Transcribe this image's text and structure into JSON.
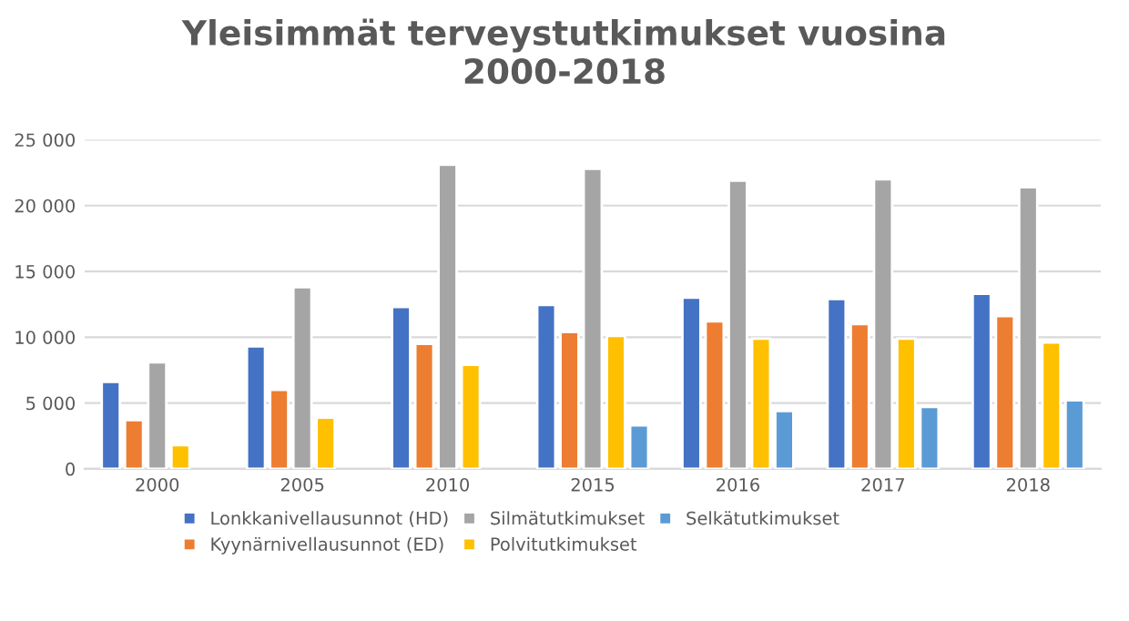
{
  "chart_data": {
    "type": "bar",
    "title": "Yleisimmät terveystutkimukset vuosina\n2000-2018",
    "categories": [
      "2000",
      "2005",
      "2010",
      "2015",
      "2016",
      "2017",
      "2018"
    ],
    "series": [
      {
        "name": "Lonkkanivellausunnot (HD)",
        "color": "#4472c4",
        "values": [
          6600,
          9300,
          12300,
          12450,
          13000,
          12900,
          13300
        ]
      },
      {
        "name": "Kyynärnivellausunnot (ED)",
        "color": "#ed7d31",
        "values": [
          3700,
          6000,
          9500,
          10400,
          11200,
          11000,
          11600
        ]
      },
      {
        "name": "Silmätutkimukset",
        "color": "#a5a5a5",
        "values": [
          8100,
          13800,
          23100,
          22800,
          21900,
          22000,
          21400
        ]
      },
      {
        "name": "Polvitutkimukset",
        "color": "#ffc000",
        "values": [
          1800,
          3900,
          7900,
          10100,
          9900,
          9900,
          9600
        ]
      },
      {
        "name": "Selkätutkimukset",
        "color": "#5b9bd5",
        "values": [
          null,
          null,
          null,
          3300,
          4400,
          4700,
          5200
        ]
      }
    ],
    "ylim": [
      0,
      25000
    ],
    "yticks": [
      {
        "value": 0,
        "label": "0"
      },
      {
        "value": 5000,
        "label": "5 000"
      },
      {
        "value": 10000,
        "label": "10 000"
      },
      {
        "value": 15000,
        "label": "15 000"
      },
      {
        "value": 20000,
        "label": "20 000"
      },
      {
        "value": 25000,
        "label": "25 000"
      }
    ],
    "grid": "y",
    "legend": "bottom"
  }
}
